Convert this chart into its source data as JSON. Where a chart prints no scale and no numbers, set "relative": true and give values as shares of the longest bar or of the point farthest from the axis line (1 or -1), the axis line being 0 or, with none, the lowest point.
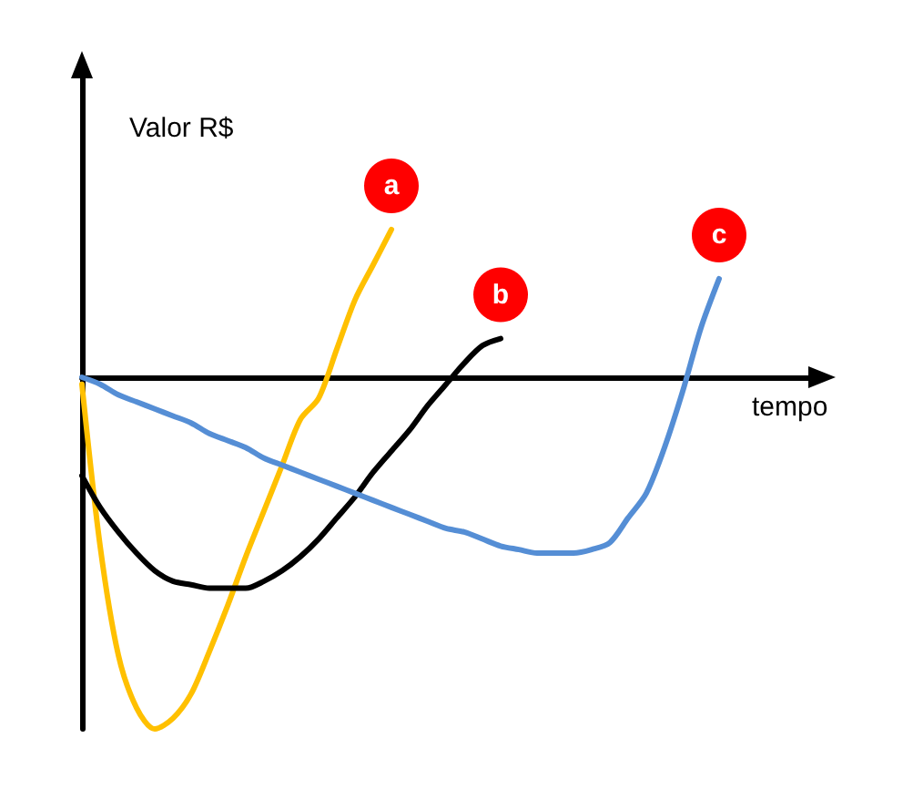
{
  "chart_data": {
    "type": "line",
    "relative": true,
    "xlabel": "tempo",
    "ylabel": "Valor R$",
    "legend": false,
    "grid": false,
    "marker": "none",
    "categories": [
      null,
      null,
      null,
      null,
      null,
      null,
      null,
      null,
      null,
      null,
      null,
      null,
      null,
      null,
      null,
      null,
      null,
      null,
      null,
      null,
      null,
      null,
      null,
      null,
      null,
      null,
      null,
      null,
      null,
      null,
      null,
      null,
      null,
      null,
      null,
      null,
      null,
      null,
      null,
      null,
      null
    ],
    "series": [
      {
        "name": "a",
        "color": "#ffc000",
        "values": [
          -0.02,
          -0.48,
          -0.79,
          -0.94,
          -1,
          -0.97,
          -0.9,
          -0.78,
          -0.65,
          -0.51,
          -0.38,
          -0.25,
          -0.12,
          -0.06,
          0.08,
          0.22,
          0.32,
          0.42,
          null,
          null,
          null,
          null,
          null,
          null,
          null,
          null,
          null,
          null,
          null,
          null,
          null,
          null,
          null,
          null,
          null,
          null,
          null,
          null,
          null,
          null,
          null
        ]
      },
      {
        "name": "b",
        "color": "#000000",
        "values": [
          -0.28,
          -0.37,
          -0.44,
          -0.5,
          -0.55,
          -0.58,
          -0.59,
          -0.6,
          -0.6,
          -0.6,
          -0.58,
          -0.55,
          -0.51,
          -0.46,
          -0.4,
          -0.34,
          -0.27,
          -0.21,
          -0.15,
          -0.08,
          -0.02,
          0.04,
          0.09,
          0.11,
          null,
          null,
          null,
          null,
          null,
          null,
          null,
          null,
          null,
          null,
          null,
          null,
          null,
          null,
          null,
          null,
          null
        ]
      },
      {
        "name": "c",
        "color": "#558ed5",
        "values": [
          0,
          -0.02,
          -0.05,
          -0.07,
          -0.09,
          -0.11,
          -0.13,
          -0.16,
          -0.18,
          -0.2,
          -0.23,
          -0.25,
          -0.27,
          -0.29,
          -0.31,
          -0.33,
          -0.35,
          -0.37,
          -0.39,
          -0.41,
          -0.43,
          -0.44,
          -0.46,
          -0.48,
          -0.49,
          -0.5,
          -0.5,
          -0.5,
          -0.49,
          -0.47,
          -0.4,
          -0.33,
          -0.2,
          -0.04,
          0.14,
          0.28,
          null,
          null,
          null,
          null,
          null
        ]
      }
    ]
  }
}
